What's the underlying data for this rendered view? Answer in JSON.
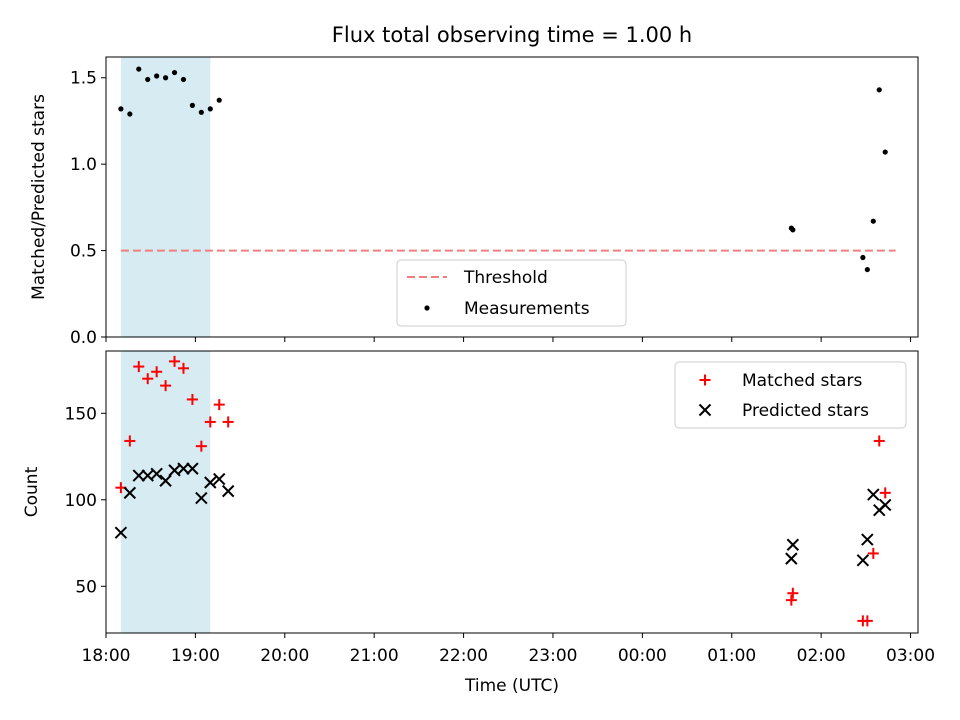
{
  "figure": {
    "title": "Flux total observing time = 1.00 h"
  },
  "chart_data": [
    {
      "type": "scatter",
      "panel": "top",
      "title": "Flux total observing time = 1.00 h",
      "xlabel": "",
      "ylabel": "Matched/Predicted stars",
      "x_axis_type": "time",
      "x_axis_tick_labels_shown": false,
      "xlim": [
        "18:00",
        "03:05"
      ],
      "ylim": [
        0.0,
        1.62
      ],
      "y_ticks": [
        0.0,
        0.5,
        1.0,
        1.5
      ],
      "y_tick_labels": [
        "0.0",
        "0.5",
        "1.0",
        "1.5"
      ],
      "grid": false,
      "legend_placement": "lower-center",
      "shaded_interval": {
        "x": [
          "18:10",
          "19:10"
        ],
        "color": "#add8e6"
      },
      "series": [
        {
          "name": "Threshold",
          "kind": "dashed-line",
          "color": "#f08080",
          "x": [
            "18:10",
            "02:50"
          ],
          "y": [
            0.5,
            0.5
          ]
        },
        {
          "name": "Measurements",
          "kind": "points",
          "color": "#000000",
          "x": [
            "18:10",
            "18:16",
            "18:22",
            "18:28",
            "18:34",
            "18:40",
            "18:46",
            "18:52",
            "18:58",
            "19:04",
            "19:10",
            "19:16",
            "01:40",
            "01:41",
            "02:28",
            "02:31",
            "02:35",
            "02:39",
            "02:43"
          ],
          "y": [
            1.32,
            1.29,
            1.55,
            1.49,
            1.51,
            1.5,
            1.53,
            1.49,
            1.34,
            1.3,
            1.32,
            1.37,
            0.63,
            0.62,
            0.46,
            0.39,
            0.67,
            1.43,
            1.07
          ]
        }
      ]
    },
    {
      "type": "scatter",
      "panel": "bottom",
      "xlabel": "Time (UTC)",
      "ylabel": "Count",
      "x_axis_type": "time",
      "xlim": [
        "18:00",
        "03:05"
      ],
      "x_ticks": [
        "18:00",
        "19:00",
        "20:00",
        "21:00",
        "22:00",
        "23:00",
        "00:00",
        "01:00",
        "02:00",
        "03:00"
      ],
      "ylim": [
        23,
        186
      ],
      "y_ticks": [
        50,
        100,
        150
      ],
      "grid": false,
      "legend_placement": "upper-right",
      "shaded_interval": {
        "x": [
          "18:10",
          "19:10"
        ],
        "color": "#add8e6"
      },
      "series": [
        {
          "name": "Matched stars",
          "marker": "plus",
          "color": "#ff0000",
          "x": [
            "18:10",
            "18:16",
            "18:22",
            "18:28",
            "18:34",
            "18:40",
            "18:46",
            "18:52",
            "18:58",
            "19:04",
            "19:10",
            "19:16",
            "19:22",
            "01:40",
            "01:41",
            "02:28",
            "02:31",
            "02:35",
            "02:39",
            "02:43"
          ],
          "y": [
            107,
            134,
            177,
            170,
            174,
            166,
            180,
            176,
            158,
            131,
            145,
            155,
            145,
            42,
            46,
            30,
            30,
            69,
            134,
            104
          ]
        },
        {
          "name": "Predicted stars",
          "marker": "x",
          "color": "#000000",
          "x": [
            "18:10",
            "18:16",
            "18:22",
            "18:28",
            "18:34",
            "18:40",
            "18:46",
            "18:52",
            "18:58",
            "19:04",
            "19:10",
            "19:16",
            "19:22",
            "01:40",
            "01:41",
            "02:28",
            "02:31",
            "02:35",
            "02:39",
            "02:43"
          ],
          "y": [
            81,
            104,
            114,
            114,
            115,
            111,
            117,
            118,
            118,
            101,
            110,
            112,
            105,
            66,
            74,
            65,
            77,
            103,
            94,
            97
          ]
        }
      ]
    }
  ]
}
